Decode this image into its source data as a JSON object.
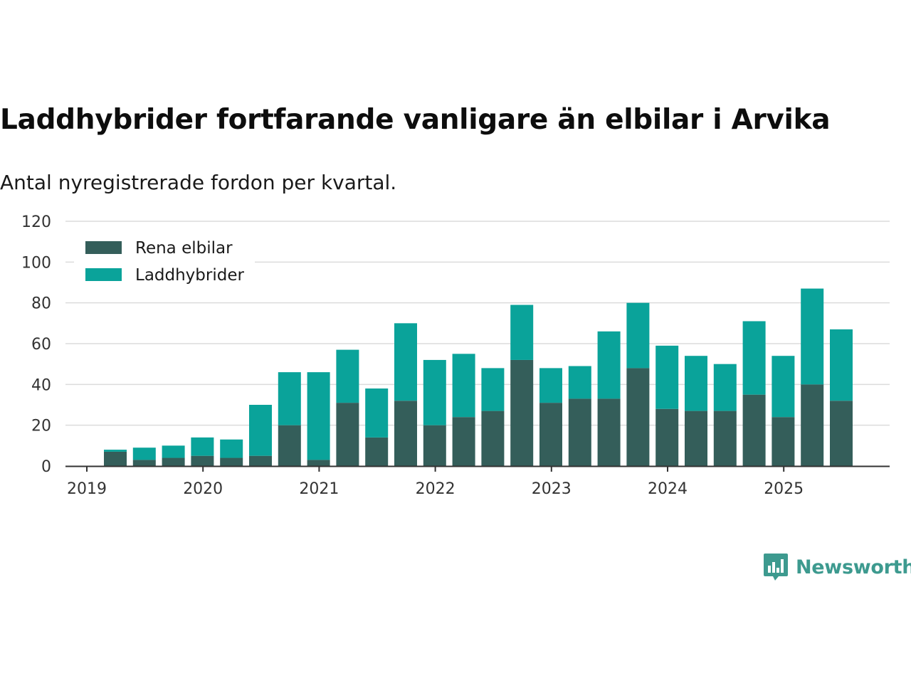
{
  "chart_data": {
    "type": "bar",
    "stacked": true,
    "title": "Laddhybrider fortfarande vanligare än elbilar i Arvika",
    "subtitle": "Antal nyregistrerade fordon per kvartal.",
    "xlabel": "",
    "ylabel": "",
    "ylim": [
      0,
      120
    ],
    "yticks": [
      "0",
      "20",
      "40",
      "60",
      "80",
      "100",
      "120"
    ],
    "xticks": [
      "2019",
      "2020",
      "2021",
      "2022",
      "2023",
      "2024",
      "2025"
    ],
    "grid": true,
    "legend_position": "top-left",
    "categories": [
      "2019 Q2",
      "2019 Q3",
      "2019 Q4",
      "2020 Q1",
      "2020 Q2",
      "2020 Q3",
      "2020 Q4",
      "2021 Q1",
      "2021 Q2",
      "2021 Q3",
      "2021 Q4",
      "2022 Q1",
      "2022 Q2",
      "2022 Q3",
      "2022 Q4",
      "2023 Q1",
      "2023 Q2",
      "2023 Q3",
      "2023 Q4",
      "2024 Q1",
      "2024 Q2",
      "2024 Q3",
      "2024 Q4",
      "2025 Q1",
      "2025 Q2",
      "2025 Q3"
    ],
    "series": [
      {
        "name": "Rena elbilar",
        "color": "#345e5a",
        "values": [
          7,
          3,
          4,
          5,
          4,
          5,
          20,
          3,
          31,
          14,
          32,
          20,
          24,
          27,
          52,
          31,
          33,
          33,
          48,
          28,
          27,
          27,
          35,
          24,
          40,
          32
        ]
      },
      {
        "name": "Laddhybrider",
        "color": "#0aa39a",
        "values": [
          1,
          6,
          6,
          9,
          9,
          25,
          26,
          43,
          26,
          24,
          38,
          32,
          31,
          21,
          27,
          17,
          16,
          33,
          32,
          31,
          27,
          23,
          36,
          30,
          47,
          35
        ]
      }
    ]
  },
  "brand": {
    "name": "Newsworthy",
    "icon": "bar-chart-speech-bubble-icon",
    "color": "#3d9a8f"
  }
}
